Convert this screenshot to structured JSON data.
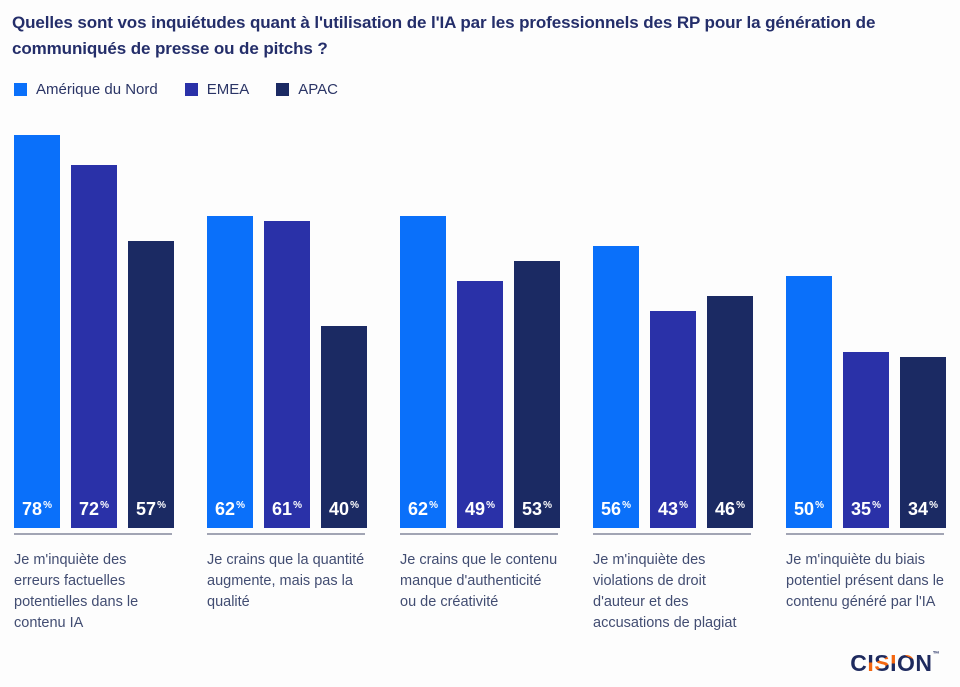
{
  "chart_data": {
    "type": "bar",
    "title": "Quelles sont vos inquiétudes quant à l'utilisation de l'IA par les professionnels des RP pour la génération de communiqués de presse ou de pitchs ?",
    "categories": [
      "Je m'inquiète des erreurs factuelles potentielles dans le contenu IA",
      "Je crains que la quantité augmente, mais pas la qualité",
      "Je crains que le contenu manque d'authenticité ou de créativité",
      "Je m'inquiète des violations de droit d'auteur et des accusations de plagiat",
      "Je m'inquiète du biais potentiel présent dans le contenu généré par l'IA"
    ],
    "series": [
      {
        "name": "Amérique du Nord",
        "color": "#0a70fa",
        "values": [
          78,
          62,
          62,
          56,
          50
        ]
      },
      {
        "name": "EMEA",
        "color": "#2a31a8",
        "values": [
          72,
          61,
          49,
          43,
          35
        ]
      },
      {
        "name": "APAC",
        "color": "#1b2a63",
        "values": [
          57,
          40,
          53,
          46,
          34
        ]
      }
    ],
    "value_suffix": "%",
    "ylim": [
      0,
      100
    ],
    "grid": false,
    "legend_position": "top-left",
    "value_label_position": "inside-bottom"
  },
  "colors": {
    "title_text": "#242e6a",
    "legend_text": "#2b3566",
    "caption_text": "#424d72",
    "baseline": "#a2a5b4",
    "background": "#fdfdfd"
  },
  "footer": {
    "logo_text": "CISION",
    "trademark": "™"
  }
}
